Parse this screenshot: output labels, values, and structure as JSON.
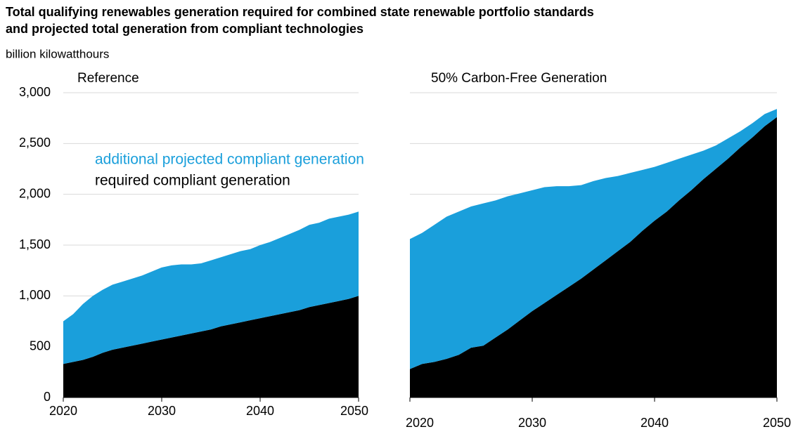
{
  "chart_data": [
    {
      "type": "area",
      "title": "Total qualifying renewables generation required for combined state renewable portfolio standards and projected total generation from compliant technologies",
      "subtitle": "billion kilowatthours",
      "panel_title": "Reference",
      "x": [
        2020,
        2021,
        2022,
        2023,
        2024,
        2025,
        2026,
        2027,
        2028,
        2029,
        2030,
        2031,
        2032,
        2033,
        2034,
        2035,
        2036,
        2037,
        2038,
        2039,
        2040,
        2041,
        2042,
        2043,
        2044,
        2045,
        2046,
        2047,
        2048,
        2049,
        2050
      ],
      "series": [
        {
          "name": "required compliant generation",
          "color": "#000000",
          "values": [
            330,
            350,
            370,
            400,
            440,
            470,
            490,
            510,
            530,
            550,
            570,
            590,
            610,
            630,
            650,
            670,
            700,
            720,
            740,
            760,
            780,
            800,
            820,
            840,
            860,
            890,
            910,
            930,
            950,
            970,
            1000
          ]
        },
        {
          "name": "additional projected compliant generation",
          "color": "#1a9fdb",
          "values": [
            420,
            470,
            550,
            600,
            620,
            640,
            650,
            660,
            670,
            690,
            710,
            710,
            700,
            680,
            670,
            680,
            680,
            690,
            700,
            700,
            720,
            730,
            750,
            770,
            790,
            810,
            810,
            830,
            830,
            830,
            830
          ]
        }
      ],
      "stacked": true,
      "xlim": [
        2020,
        2050
      ],
      "xticks": [
        2020,
        2030,
        2040,
        2050
      ],
      "ylim": [
        0,
        3000
      ],
      "yticks": [
        0,
        {
          "value": 500,
          "label": "500"
        },
        {
          "value": 1000,
          "label": "1,000"
        },
        {
          "value": 1500,
          "label": "1,500"
        },
        {
          "value": 2000,
          "label": "2,000"
        },
        {
          "value": 2500,
          "label": "2,500"
        },
        {
          "value": 3000,
          "label": "3,000"
        }
      ],
      "grid": true
    },
    {
      "type": "area",
      "panel_title": "50% Carbon-Free Generation",
      "x": [
        2020,
        2021,
        2022,
        2023,
        2024,
        2025,
        2026,
        2027,
        2028,
        2029,
        2030,
        2031,
        2032,
        2033,
        2034,
        2035,
        2036,
        2037,
        2038,
        2039,
        2040,
        2041,
        2042,
        2043,
        2044,
        2045,
        2046,
        2047,
        2048,
        2049,
        2050
      ],
      "series": [
        {
          "color": "#000000",
          "values": [
            280,
            330,
            350,
            380,
            420,
            490,
            510,
            590,
            670,
            760,
            850,
            930,
            1010,
            1090,
            1170,
            1260,
            1350,
            1440,
            1530,
            1640,
            1740,
            1830,
            1940,
            2040,
            2150,
            2250,
            2350,
            2460,
            2560,
            2670,
            2760
          ]
        },
        {
          "color": "#1a9fdb",
          "values": [
            1280,
            1290,
            1350,
            1400,
            1410,
            1390,
            1400,
            1350,
            1310,
            1250,
            1190,
            1140,
            1070,
            990,
            920,
            870,
            810,
            740,
            680,
            600,
            530,
            480,
            410,
            350,
            280,
            230,
            200,
            160,
            140,
            120,
            80
          ]
        }
      ],
      "stacked": true,
      "xlim": [
        2020,
        2050
      ],
      "xticks": [
        2020,
        2030,
        2040,
        2050
      ],
      "ylim": [
        0,
        3000
      ],
      "grid": true
    }
  ]
}
